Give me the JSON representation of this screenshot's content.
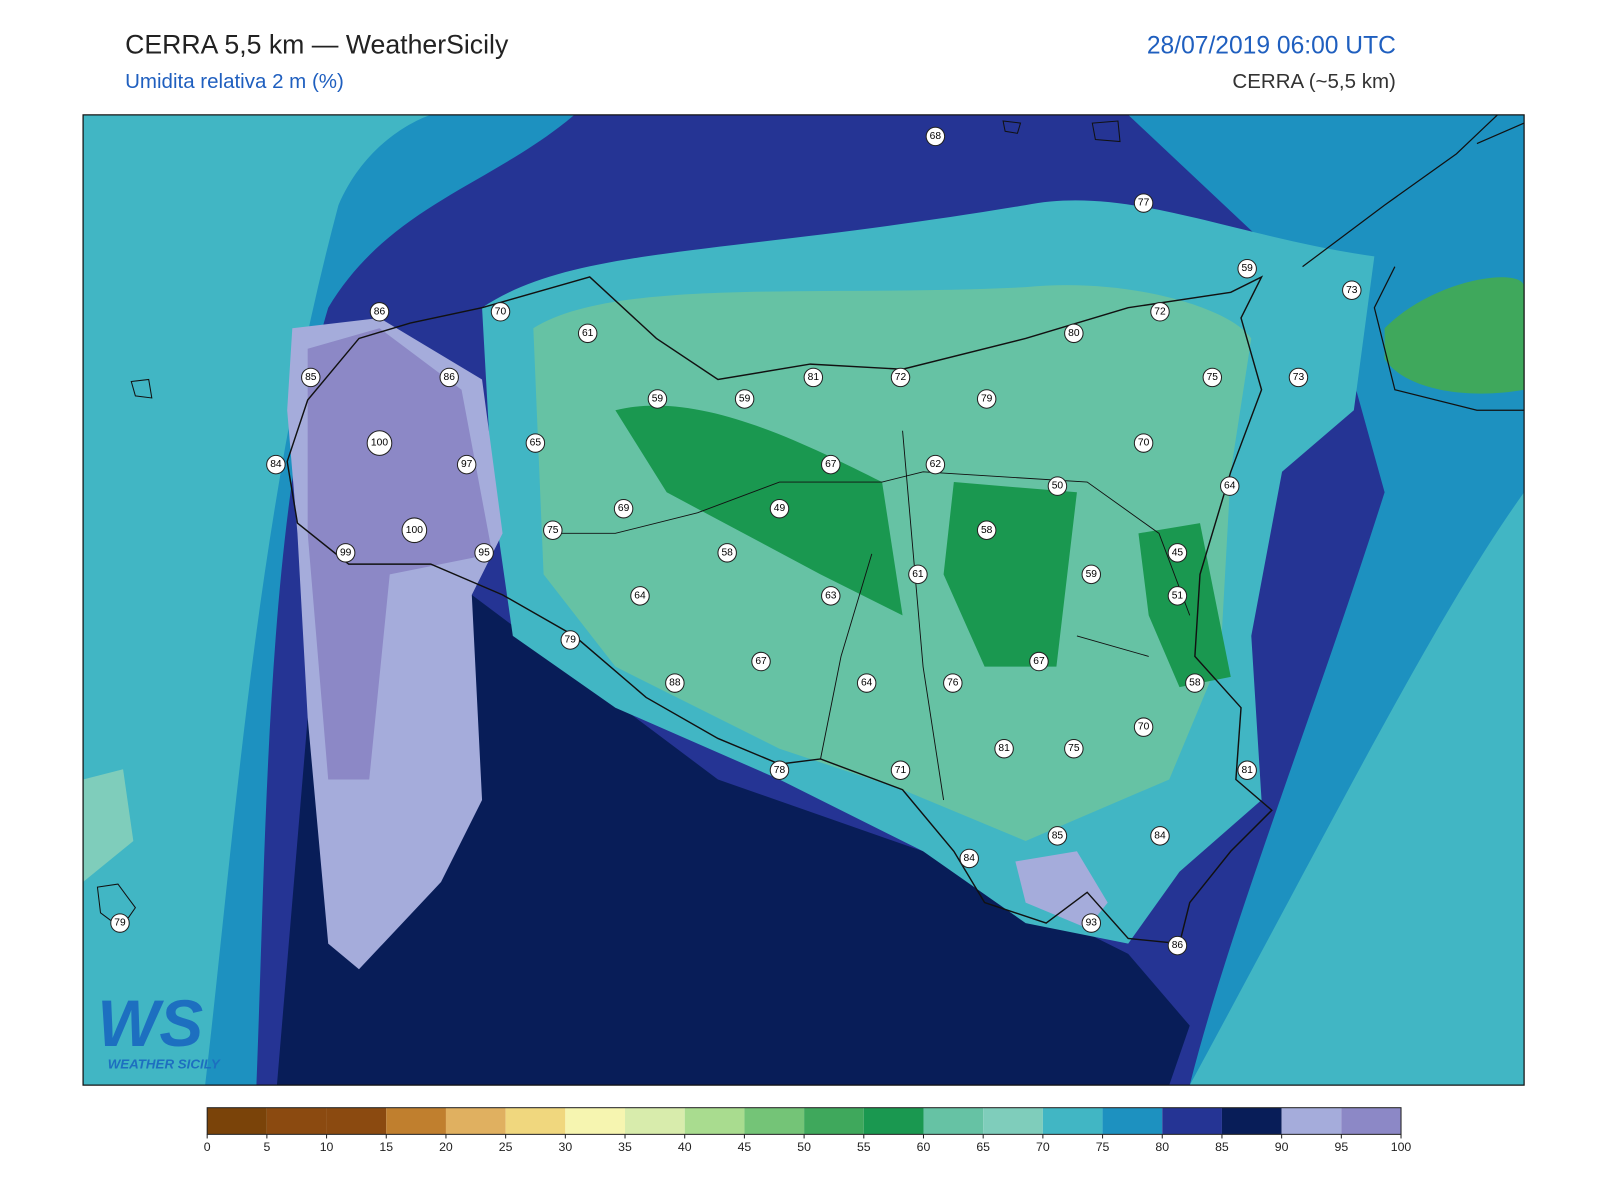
{
  "header": {
    "title": "CERRA 5,5 km — WeatherSicily",
    "subtitle": "Umidita relativa 2 m (%)",
    "datetime": "28/07/2019 06:00 UTC",
    "model": "CERRA (~5,5 km)"
  },
  "stations": [
    68,
    77,
    59,
    73,
    72,
    80,
    86,
    70,
    61,
    85,
    86,
    59,
    59,
    81,
    72,
    79,
    75,
    73,
    100,
    84,
    97,
    65,
    67,
    62,
    70,
    50,
    64,
    69,
    49,
    75,
    100,
    99,
    95,
    58,
    58,
    45,
    61,
    59,
    51,
    64,
    63,
    79,
    67,
    67,
    88,
    64,
    76,
    58,
    70,
    81,
    75,
    81,
    78,
    71,
    85,
    84,
    84,
    93,
    86,
    79
  ],
  "colorbar": {
    "ticks": [
      0,
      5,
      10,
      15,
      20,
      25,
      30,
      35,
      40,
      45,
      50,
      55,
      60,
      65,
      70,
      75,
      80,
      85,
      90,
      95,
      100
    ],
    "colors": [
      "#7a4309",
      "#8b4a10",
      "#8b4a10",
      "#c07f2e",
      "#e0b060",
      "#f0d77e",
      "#f6f5b0",
      "#d8ecac",
      "#a9dc8f",
      "#74c477",
      "#3fa85c",
      "#1a9850",
      "#66c2a4",
      "#7fcdbb",
      "#41b6c4",
      "#1d91c0",
      "#253494",
      "#081d58",
      "#a5acdb",
      "#8c88c6"
    ]
  },
  "logo": {
    "mark": "WS",
    "name": "WEATHER SICILY"
  }
}
